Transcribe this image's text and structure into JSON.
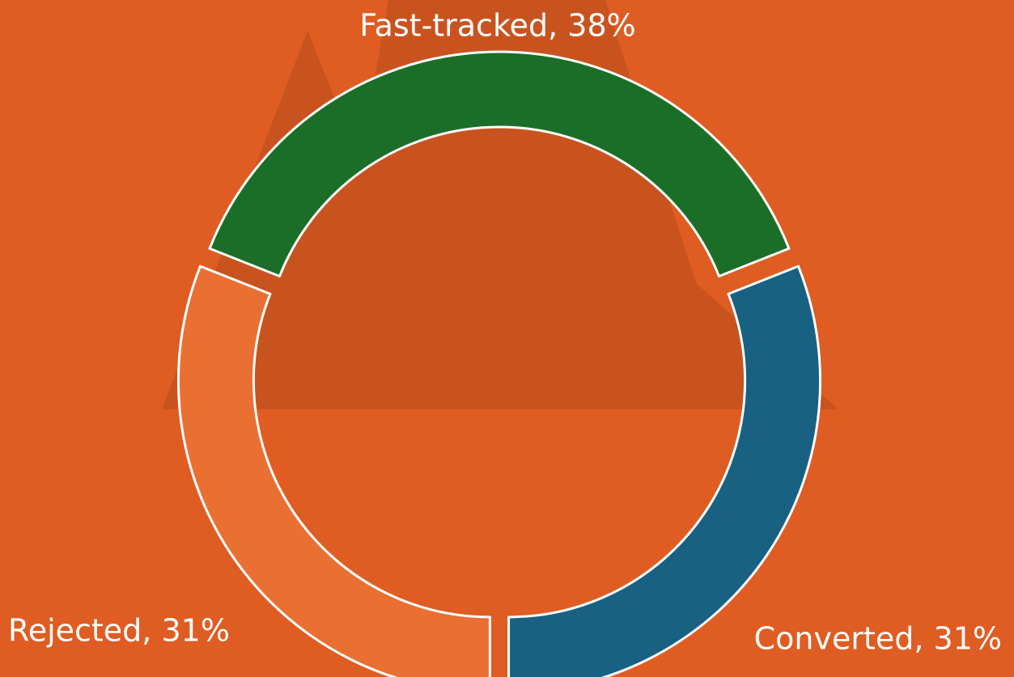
{
  "chart_data": {
    "type": "donut",
    "categories": [
      "Fast-tracked, 38%",
      "Converted, 31%",
      "Rejected, 31%"
    ],
    "values": [
      38,
      31,
      31
    ],
    "colors": [
      "#1b6e27",
      "#186183",
      "#e97032"
    ]
  }
}
